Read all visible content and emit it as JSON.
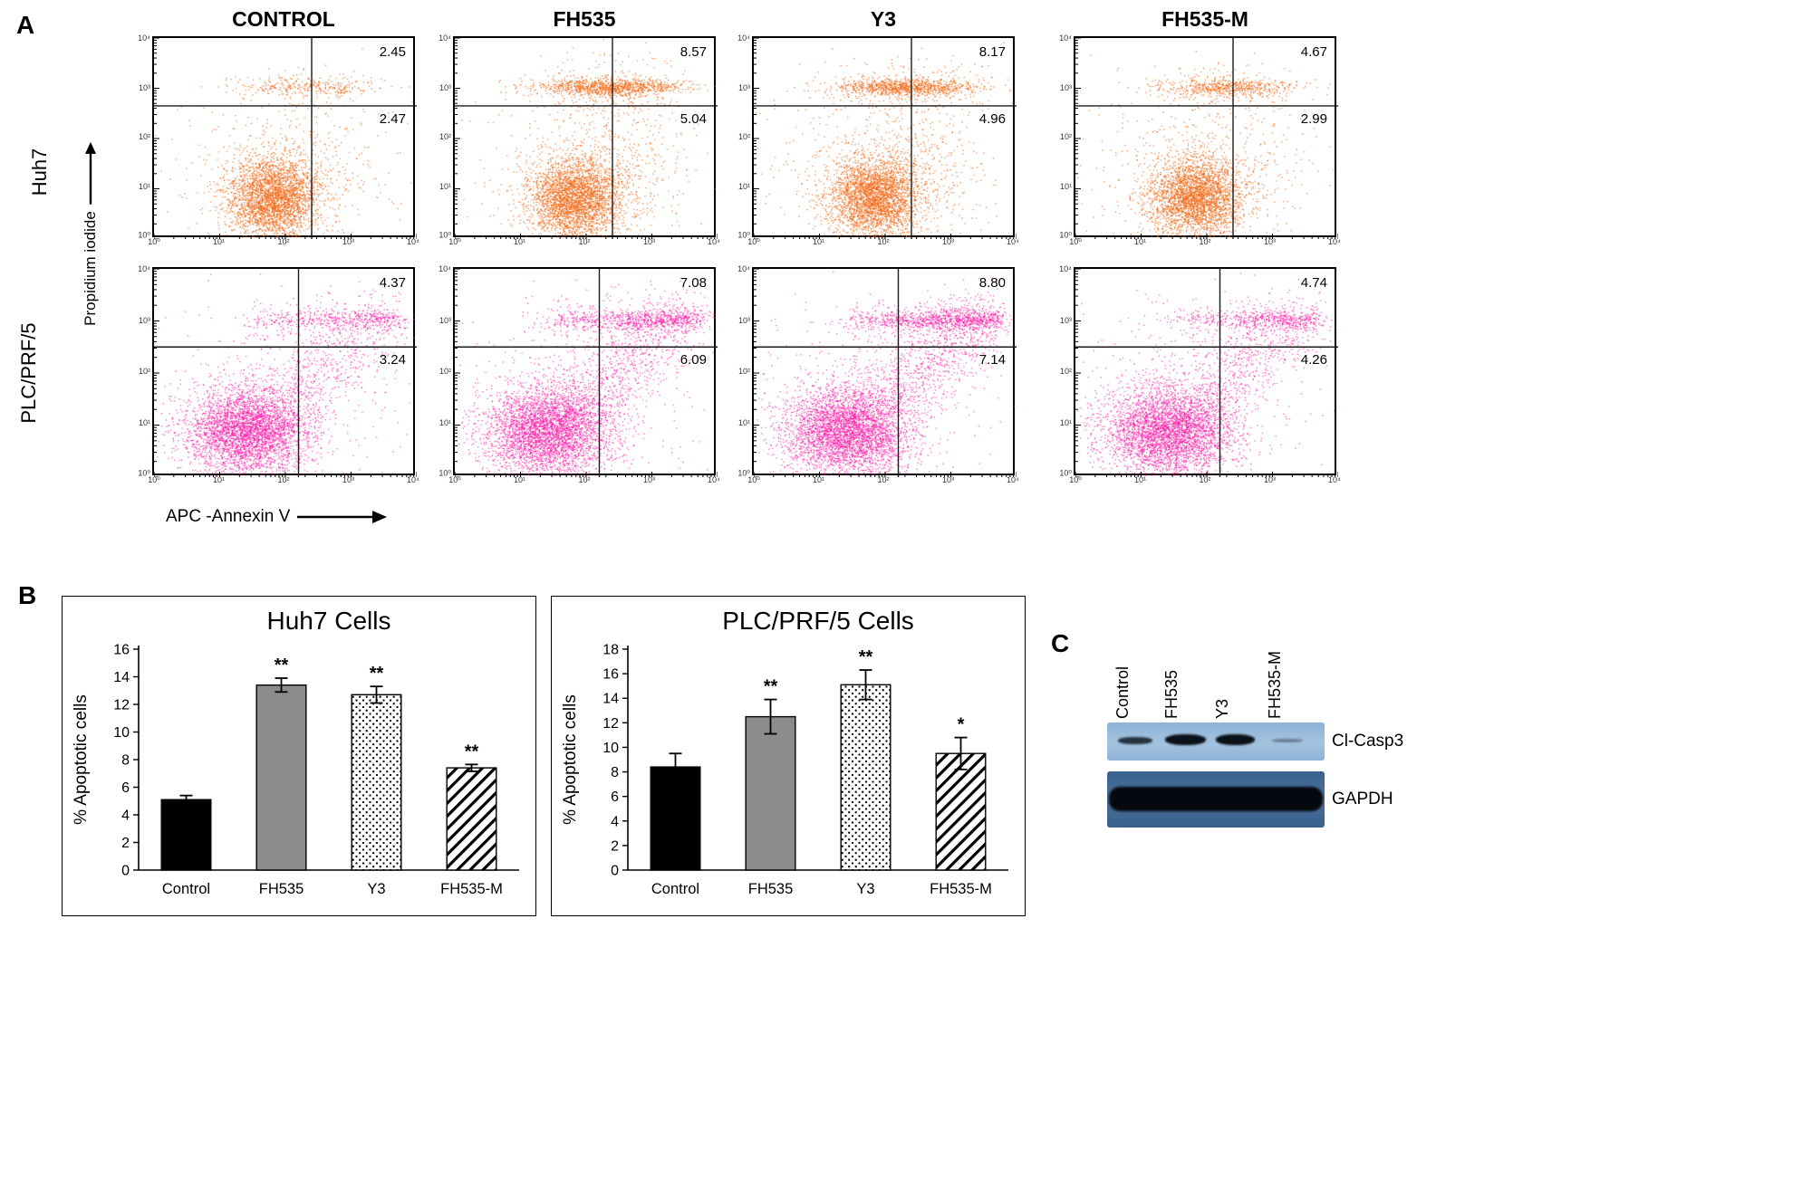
{
  "panels": {
    "a": {
      "label": "A",
      "columns": [
        "CONTROL",
        "FH535",
        "Y3",
        "FH535-M"
      ],
      "rows": [
        "Huh7",
        "PLC/PRF/5"
      ],
      "x_axis": "APC -Annexin V",
      "y_axis": "Propidium iodide"
    },
    "b": {
      "label": "B"
    },
    "c": {
      "label": "C",
      "lanes": [
        "Control",
        "FH535",
        "Y3",
        "FH535-M"
      ],
      "blots": [
        {
          "label": "Cl-Casp3"
        },
        {
          "label": "GAPDH"
        }
      ]
    }
  },
  "flow_ticks": [
    "10⁰",
    "10¹",
    "10²",
    "10³",
    "10⁴"
  ],
  "colors": {
    "huh7_dots": "#F26C1A",
    "plc_dots": "#FC15A5",
    "bar_gray": "#8c8c8c",
    "blot_bg_top": "#8FB3D6",
    "blot_bg_bottom": "#3A618E"
  },
  "chart_data": [
    {
      "type": "scatter",
      "subtype": "flow_cytometry_apoptosis",
      "xlabel": "APC -Annexin V",
      "ylabel": "Propidium iodide",
      "x_scale": "log10, decades 10^0 to 10^4",
      "y_scale": "log10, decades 10^0 to 10^4",
      "rows": [
        {
          "cell_line": "Huh7",
          "dot_color": "#F26C1A",
          "plots": [
            {
              "treatment": "CONTROL",
              "upper_right_pct": "2.45",
              "lower_right_pct": "2.47"
            },
            {
              "treatment": "FH535",
              "upper_right_pct": "8.57",
              "lower_right_pct": "5.04"
            },
            {
              "treatment": "Y3",
              "upper_right_pct": "8.17",
              "lower_right_pct": "4.96"
            },
            {
              "treatment": "FH535-M",
              "upper_right_pct": "4.67",
              "lower_right_pct": "2.99"
            }
          ]
        },
        {
          "cell_line": "PLC/PRF/5",
          "dot_color": "#FC15A5",
          "plots": [
            {
              "treatment": "CONTROL",
              "upper_right_pct": "4.37",
              "lower_right_pct": "3.24"
            },
            {
              "treatment": "FH535",
              "upper_right_pct": "7.08",
              "lower_right_pct": "6.09"
            },
            {
              "treatment": "Y3",
              "upper_right_pct": "8.80",
              "lower_right_pct": "7.14"
            },
            {
              "treatment": "FH535-M",
              "upper_right_pct": "4.74",
              "lower_right_pct": "4.26"
            }
          ]
        }
      ]
    },
    {
      "type": "bar",
      "title": "Huh7 Cells",
      "ylabel": "% Apoptotic cells",
      "categories": [
        "Control",
        "FH535",
        "Y3",
        "FH535-M"
      ],
      "values": [
        5.1,
        13.4,
        12.7,
        7.4
      ],
      "errors": [
        0.3,
        0.5,
        0.6,
        0.25
      ],
      "significance": [
        "",
        "**",
        "**",
        "**"
      ],
      "ylim": [
        0,
        16
      ],
      "ytick_step": 2,
      "bar_styles": [
        "solid_black",
        "solid_gray",
        "dotted_white",
        "hatched_white"
      ]
    },
    {
      "type": "bar",
      "title": "PLC/PRF/5 Cells",
      "ylabel": "% Apoptotic cells",
      "categories": [
        "Control",
        "FH535",
        "Y3",
        "FH535-M"
      ],
      "values": [
        8.4,
        12.5,
        15.1,
        9.5
      ],
      "errors": [
        1.1,
        1.4,
        1.2,
        1.3
      ],
      "significance": [
        "",
        "**",
        "**",
        "*"
      ],
      "ylim": [
        0,
        18
      ],
      "ytick_step": 2,
      "bar_styles": [
        "solid_black",
        "solid_gray",
        "dotted_white",
        "hatched_white"
      ]
    }
  ]
}
